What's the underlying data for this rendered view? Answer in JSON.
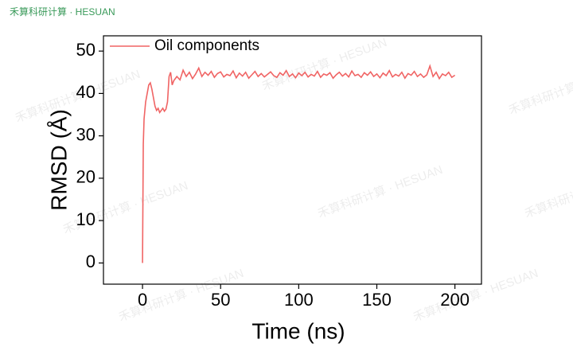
{
  "brand": "禾算科研计算 · HESUAN",
  "chart_data": {
    "type": "line",
    "x_label": "Time (ns)",
    "y_label": "RMSD (Å)",
    "xlim": [
      -25,
      217
    ],
    "ylim": [
      -5,
      53.6
    ],
    "xticks": [
      0,
      50,
      100,
      150,
      200
    ],
    "yticks": [
      0,
      10,
      20,
      30,
      40,
      50
    ],
    "legend": "top-left",
    "x": [
      0,
      0.5,
      1,
      2,
      3,
      4,
      5,
      6,
      7,
      8,
      9,
      10,
      11,
      12,
      13,
      14,
      15,
      16,
      17,
      18,
      19,
      20,
      22,
      24,
      26,
      28,
      30,
      32,
      34,
      36,
      38,
      40,
      42,
      44,
      46,
      48,
      50,
      52,
      54,
      56,
      58,
      60,
      62,
      64,
      66,
      68,
      70,
      72,
      74,
      76,
      78,
      80,
      82,
      84,
      86,
      88,
      90,
      92,
      94,
      96,
      98,
      100,
      102,
      104,
      106,
      108,
      110,
      112,
      114,
      116,
      118,
      120,
      122,
      124,
      126,
      128,
      130,
      132,
      134,
      136,
      138,
      140,
      142,
      144,
      146,
      148,
      150,
      152,
      154,
      156,
      158,
      160,
      162,
      164,
      166,
      168,
      170,
      172,
      174,
      176,
      178,
      180,
      182,
      184,
      186,
      188,
      190,
      192,
      194,
      196,
      198,
      200
    ],
    "series": [
      {
        "name": "Oil components",
        "color": "#f06464",
        "values": [
          0,
          28,
          34,
          38,
          40,
          42,
          42.5,
          41,
          39,
          37,
          36,
          36.5,
          35.5,
          36,
          36.5,
          35.8,
          36.3,
          38,
          44,
          45,
          42,
          43,
          44,
          43.2,
          45.5,
          44,
          45,
          43.5,
          44.6,
          46,
          44,
          45,
          44.3,
          45.2,
          43.8,
          44.7,
          45.1,
          43.9,
          44.5,
          44.2,
          45.3,
          43.7,
          44.8,
          44.1,
          45,
          43.6,
          44.4,
          45.2,
          44,
          44.7,
          43.9,
          44.5,
          45.1,
          44.2,
          43.8,
          44.9,
          44.3,
          45.4,
          44,
          44.6,
          43.7,
          44.8,
          44.2,
          45,
          43.9,
          44.5,
          44.1,
          45.2,
          43.8,
          44.6,
          44.3,
          44.9,
          43.6,
          44.4,
          45,
          44.1,
          44.7,
          43.9,
          45.3,
          44.2,
          44.5,
          43.8,
          44.9,
          44.3,
          45.1,
          44,
          44.6,
          43.7,
          44.8,
          44.2,
          45.4,
          43.9,
          44.5,
          44.1,
          45,
          43.6,
          44.7,
          44.3,
          45.2,
          44,
          44.6,
          43.8,
          44.4,
          46.5,
          44,
          45,
          43.5,
          44.6,
          44.2,
          45,
          43.8,
          44.3
        ]
      }
    ]
  }
}
